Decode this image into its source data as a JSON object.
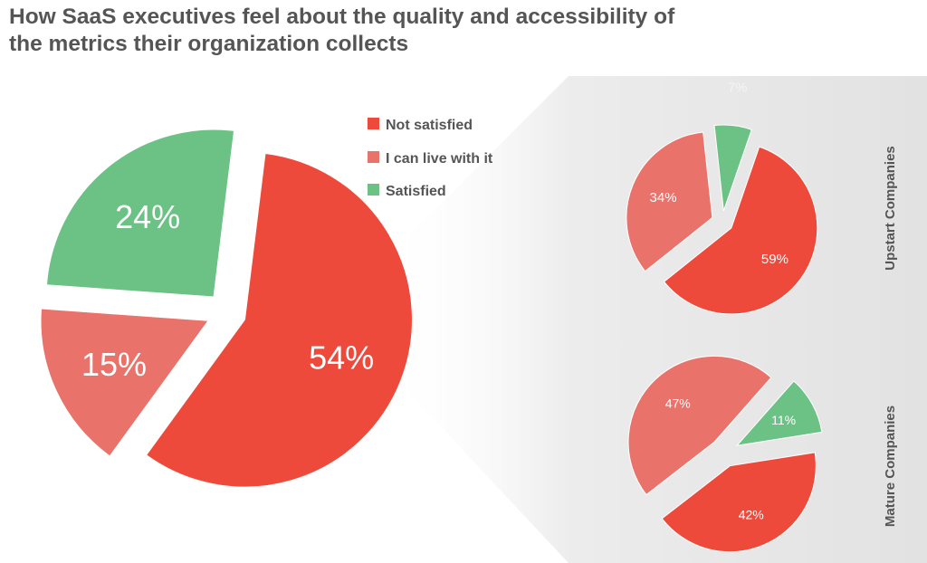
{
  "title_lines": [
    "How SaaS executives feel about the quality and accessibility of",
    "the metrics their organization collects"
  ],
  "colors": {
    "not_satisfied": "#ee4a3b",
    "live_with_it": "#e9736b",
    "satisfied": "#6cc285",
    "panel_bg": "#e6e6e6",
    "title_text": "#555555"
  },
  "chart_data": [
    {
      "type": "pie",
      "name": "Overall",
      "categories": [
        "Not satisfied",
        "I can live with it",
        "Satisfied"
      ],
      "values": [
        54,
        15,
        24
      ],
      "labels": [
        "54%",
        "15%",
        "24%"
      ],
      "legend": [
        "Not satisfied",
        "I can live with it",
        "Satisfied"
      ],
      "legend_position": "top-right of main pie"
    },
    {
      "type": "pie",
      "name": "Upstart Companies",
      "categories": [
        "Not satisfied",
        "I can live with it",
        "Satisfied"
      ],
      "values": [
        59,
        34,
        7
      ],
      "labels": [
        "59%",
        "34%",
        "7%"
      ]
    },
    {
      "type": "pie",
      "name": "Mature Companies",
      "categories": [
        "Not satisfied",
        "I can live with it",
        "Satisfied"
      ],
      "values": [
        42,
        47,
        11
      ],
      "labels": [
        "42%",
        "47%",
        "11%"
      ]
    }
  ],
  "side_labels": [
    "Upstart Companies",
    "Mature Companies"
  ]
}
